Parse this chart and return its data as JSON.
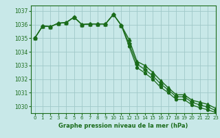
{
  "title": "Graphe pression niveau de la mer (hPa)",
  "bg_color": "#c8e8e8",
  "grid_color": "#a0c8c8",
  "line_color": "#1a6b1a",
  "xlim": [
    -0.5,
    23
  ],
  "ylim": [
    1029.5,
    1037.4
  ],
  "yticks": [
    1030,
    1031,
    1032,
    1033,
    1034,
    1035,
    1036,
    1037
  ],
  "xticks": [
    0,
    1,
    2,
    3,
    4,
    5,
    6,
    7,
    8,
    9,
    10,
    11,
    12,
    13,
    14,
    15,
    16,
    17,
    18,
    19,
    20,
    21,
    22,
    23
  ],
  "series": [
    [
      1035.0,
      1035.9,
      1035.85,
      1036.1,
      1036.15,
      1036.55,
      1036.0,
      1036.05,
      1036.05,
      1036.05,
      1036.75,
      1035.95,
      1034.9,
      1033.3,
      1033.0,
      1032.5,
      1031.9,
      1031.35,
      1030.85,
      1030.85,
      1030.45,
      1030.3,
      1030.15,
      1029.85
    ],
    [
      1035.0,
      1035.9,
      1035.85,
      1036.1,
      1036.15,
      1036.55,
      1036.0,
      1036.05,
      1036.05,
      1036.05,
      1036.75,
      1035.95,
      1034.6,
      1033.1,
      1032.7,
      1032.25,
      1031.65,
      1031.2,
      1030.7,
      1030.7,
      1030.3,
      1030.1,
      1029.95,
      1029.7
    ],
    [
      1035.0,
      1035.9,
      1035.85,
      1036.1,
      1036.15,
      1036.55,
      1036.0,
      1036.05,
      1036.05,
      1036.05,
      1036.75,
      1035.95,
      1034.4,
      1032.85,
      1032.45,
      1032.0,
      1031.4,
      1031.0,
      1030.5,
      1030.5,
      1030.1,
      1029.9,
      1029.75,
      1029.55
    ]
  ],
  "markers": [
    "^",
    "D",
    "o"
  ],
  "marker_sizes": [
    3.5,
    2.8,
    2.8
  ],
  "linewidths": [
    1.0,
    0.9,
    0.9
  ],
  "figsize": [
    3.2,
    2.0
  ],
  "dpi": 100
}
